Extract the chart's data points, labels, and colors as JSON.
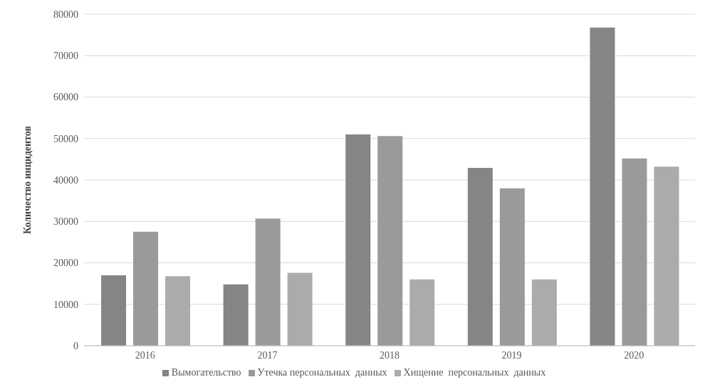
{
  "chart_data": {
    "type": "bar",
    "ylabel": "Количество инцидентов",
    "categories": [
      "2016",
      "2017",
      "2018",
      "2019",
      "2020"
    ],
    "series": [
      {
        "name": "Вымогательство",
        "color": "#858585",
        "values": [
          17000,
          14800,
          51000,
          42900,
          76800
        ]
      },
      {
        "name": "Утечка персональных  данных",
        "color": "#9a9a9a",
        "values": [
          27500,
          30700,
          50600,
          38000,
          45200
        ]
      },
      {
        "name": "Хищение  персональных  данных",
        "color": "#ababab",
        "values": [
          16800,
          17600,
          16000,
          16000,
          43200
        ]
      }
    ],
    "ylim": [
      0,
      80000
    ],
    "yticks": [
      0,
      10000,
      20000,
      30000,
      40000,
      50000,
      60000,
      70000,
      80000
    ],
    "grid": "y",
    "legend": "bottom"
  }
}
